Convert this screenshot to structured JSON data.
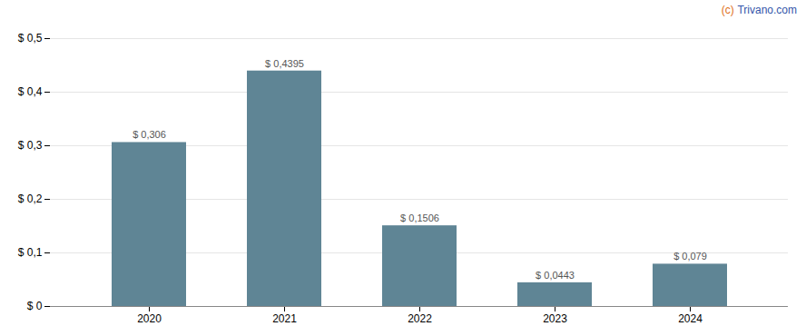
{
  "chart_data": {
    "type": "bar",
    "categories": [
      "2020",
      "2021",
      "2022",
      "2023",
      "2024"
    ],
    "values": [
      0.306,
      0.4395,
      0.1506,
      0.0443,
      0.079
    ],
    "value_labels": [
      "$ 0,306",
      "$ 0,4395",
      "$ 0,1506",
      "$ 0,0443",
      "$ 0,079"
    ],
    "data_labels": true,
    "color": "#5f8595",
    "ylim": [
      0,
      0.5
    ],
    "yticks": [
      {
        "value": 0.0,
        "label": "$ 0"
      },
      {
        "value": 0.1,
        "label": "$ 0,1"
      },
      {
        "value": 0.2,
        "label": "$ 0,2"
      },
      {
        "value": 0.3,
        "label": "$ 0,3"
      },
      {
        "value": 0.4,
        "label": "$ 0,4"
      },
      {
        "value": 0.5,
        "label": "$ 0,5"
      }
    ],
    "grid": true,
    "annotations": [
      {
        "text": "(c)",
        "color": "#e07020"
      },
      {
        "text": "Trivano.com",
        "color": "#3355aa"
      }
    ]
  }
}
